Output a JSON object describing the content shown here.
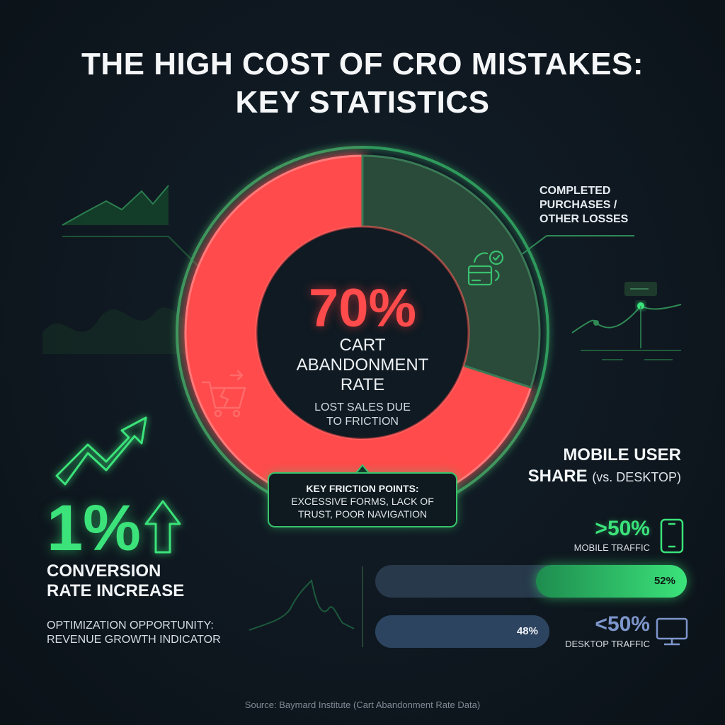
{
  "title": {
    "line1": "THE HIGH COST OF CRO MISTAKES:",
    "line2": "KEY STATISTICS"
  },
  "colors": {
    "abandon": "#ff4b4b",
    "completed": "#2a4a3a",
    "accent_green": "#3be37a",
    "desktop_blue": "#7d96cc",
    "background": "#0f1820"
  },
  "chart_data": [
    {
      "type": "pie",
      "variant": "donut",
      "labels": [
        "CART ABANDONMENT RATE",
        "COMPLETED PURCHASES / OTHER LOSSES"
      ],
      "values": [
        70,
        30
      ],
      "unit": "%",
      "center_value": "70%",
      "center_label_lines": [
        "CART",
        "ABANDONMENT",
        "RATE"
      ],
      "center_sub_lines": [
        "LOST SALES DUE",
        "TO FRICTION"
      ],
      "segment_label_lines": [
        "COMPLETED",
        "PURCHASES /",
        "OTHER LOSSES"
      ]
    },
    {
      "type": "bar",
      "orientation": "horizontal",
      "title_main_line1": "MOBILE USER",
      "title_main_line2": "SHARE",
      "title_suffix": "(vs. DESKTOP)",
      "categories": [
        "MOBILE TRAFFIC",
        "DESKTOP TRAFFIC"
      ],
      "values": [
        52,
        48
      ],
      "unit": "%",
      "bar_labels": [
        "52%",
        "48%"
      ],
      "headline_values": [
        ">50%",
        "<50%"
      ]
    }
  ],
  "friction": {
    "title": "KEY FRICTION POINTS:",
    "line1": "EXCESSIVE FORMS, LACK OF",
    "line2": "TRUST, POOR NAVIGATION"
  },
  "conversion": {
    "value": "1%",
    "label_line1": "CONVERSION",
    "label_line2": "RATE INCREASE",
    "sub_line1": "OPTIMIZATION OPPORTUNITY:",
    "sub_line2": "REVENUE GROWTH INDICATOR"
  },
  "icons": {
    "cart": "broken-cart-icon",
    "card": "card-payment-icon",
    "arrow": "growth-arrow-icon",
    "up": "up-arrow-icon",
    "phone": "mobile-phone-icon",
    "monitor": "desktop-monitor-icon"
  },
  "source": "Source: Baymard Institute (Cart Abandonment Rate Data)"
}
